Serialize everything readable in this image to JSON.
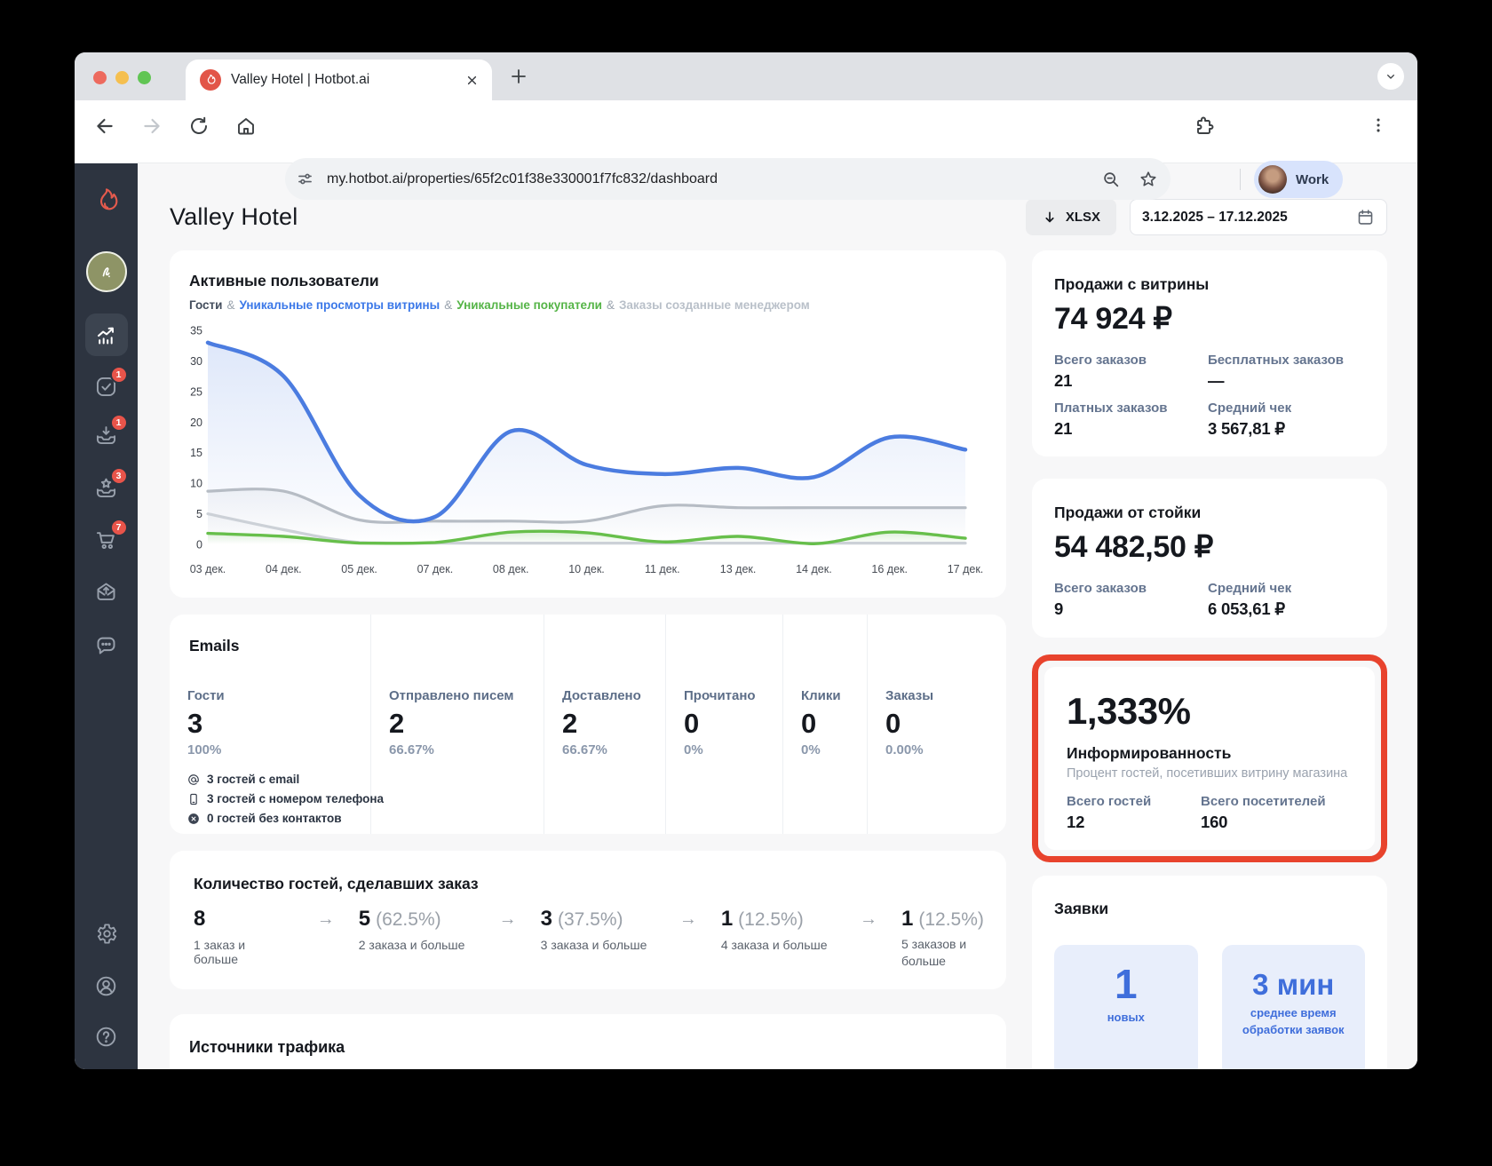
{
  "browser": {
    "tab_title": "Valley Hotel | Hotbot.ai",
    "url": "my.hotbot.ai/properties/65f2c01f38e330001f7fc832/dashboard",
    "profile_label": "Work"
  },
  "sidebar": {
    "badges": {
      "tasks": "1",
      "inbox": "1",
      "loyalty": "3",
      "cart": "7"
    }
  },
  "header": {
    "title": "Valley Hotel",
    "export_label": "XLSX",
    "date_range": "3.12.2025 – 17.12.2025"
  },
  "chart_data": {
    "type": "line",
    "title": "Активные пользователи",
    "legend_separator": "&",
    "x_tick_labels": [
      "03 дек.",
      "04 дек.",
      "05 дек.",
      "07 дек.",
      "08 дек.",
      "10 дек.",
      "11 дек.",
      "13 дек.",
      "14 дек.",
      "16 дек.",
      "17 дек."
    ],
    "ylim": [
      0,
      35
    ],
    "yticks": [
      0,
      5,
      10,
      15,
      20,
      25,
      30,
      35
    ],
    "grid": false,
    "legend_position": "top",
    "series": [
      {
        "name": "Гости",
        "color": "#b6bcc4",
        "legend_color": "#434d5c",
        "fill_opacity": 0.14,
        "values": [
          8.7,
          8.7,
          4,
          3.8,
          3.8,
          3.8,
          6.3,
          6,
          6,
          6,
          6
        ]
      },
      {
        "name": "Уникальные просмотры витрины",
        "color": "#4b7ce0",
        "legend_color": "#3b78e8",
        "fill_opacity": 0.18,
        "values": [
          33,
          27.5,
          8,
          4.5,
          18.5,
          13,
          11.5,
          12.5,
          11,
          17.5,
          15.5
        ]
      },
      {
        "name": "Уникальные покупатели",
        "color": "#67bf4b",
        "legend_color": "#55b447",
        "fill_opacity": 0.2,
        "values": [
          1.8,
          1.3,
          0.2,
          0.3,
          2,
          1.9,
          0.4,
          1.3,
          0.1,
          2,
          1
        ]
      },
      {
        "name": "Заказы созданные менеджером",
        "color": "#ccd1d7",
        "legend_color": "#b9c0c9",
        "fill_opacity": 0.12,
        "values": [
          5,
          2.4,
          0.3,
          0.2,
          0.2,
          0.2,
          0.2,
          0.2,
          0.2,
          0.2,
          0.2
        ]
      }
    ]
  },
  "emails": {
    "title": "Emails",
    "columns": [
      {
        "label": "Гости",
        "value": "3",
        "percent": "100%"
      },
      {
        "label": "Отправлено писем",
        "value": "2",
        "percent": "66.67%"
      },
      {
        "label": "Доставлено",
        "value": "2",
        "percent": "66.67%"
      },
      {
        "label": "Прочитано",
        "value": "0",
        "percent": "0%"
      },
      {
        "label": "Клики",
        "value": "0",
        "percent": "0%"
      },
      {
        "label": "Заказы",
        "value": "0",
        "percent": "0.00%"
      }
    ],
    "contacts": [
      {
        "icon": "at-icon",
        "text": "3 гостей с email"
      },
      {
        "icon": "phone-icon",
        "text": "3 гостей с номером телефона"
      },
      {
        "icon": "x-circle-icon",
        "text": "0 гостей без контактов"
      }
    ]
  },
  "funnel": {
    "title": "Количество гостей, сделавших заказ",
    "arrow": "→",
    "steps": [
      {
        "value": "8",
        "percent": "",
        "caption": "1 заказ и больше"
      },
      {
        "value": "5",
        "percent": "(62.5%)",
        "caption": "2 заказа и больше"
      },
      {
        "value": "3",
        "percent": "(37.5%)",
        "caption": "3 заказа и больше"
      },
      {
        "value": "1",
        "percent": "(12.5%)",
        "caption": "4 заказа и больше"
      },
      {
        "value": "1",
        "percent": "(12.5%)",
        "caption": "5 заказов и больше"
      }
    ]
  },
  "traffic": {
    "title": "Источники трафика"
  },
  "sales_showcase": {
    "title": "Продажи с витрины",
    "total": "74 924 ₽",
    "stats": [
      {
        "label": "Всего заказов",
        "value": "21"
      },
      {
        "label": "Бесплатных заказов",
        "value": "—"
      },
      {
        "label": "Платных заказов",
        "value": "21"
      },
      {
        "label": "Средний чек",
        "value": "3 567,81 ₽"
      }
    ]
  },
  "sales_desk": {
    "title": "Продажи от стойки",
    "total": "54 482,50 ₽",
    "stats": [
      {
        "label": "Всего заказов",
        "value": "9"
      },
      {
        "label": "Средний чек",
        "value": "6 053,61 ₽"
      }
    ]
  },
  "awareness": {
    "value": "1,333%",
    "title": "Информированность",
    "subtitle": "Процент гостей, посетивших витрину магазина",
    "highlight_color": "#e8432d",
    "stats": [
      {
        "label": "Всего гостей",
        "value": "12"
      },
      {
        "label": "Всего посетителей",
        "value": "160"
      }
    ]
  },
  "requests": {
    "title": "Заявки",
    "accent": "#3f6edb",
    "tiles": [
      {
        "value": "1",
        "caption": "новых"
      },
      {
        "value": "3 мин",
        "caption": "среднее время обработки заявок"
      }
    ]
  }
}
